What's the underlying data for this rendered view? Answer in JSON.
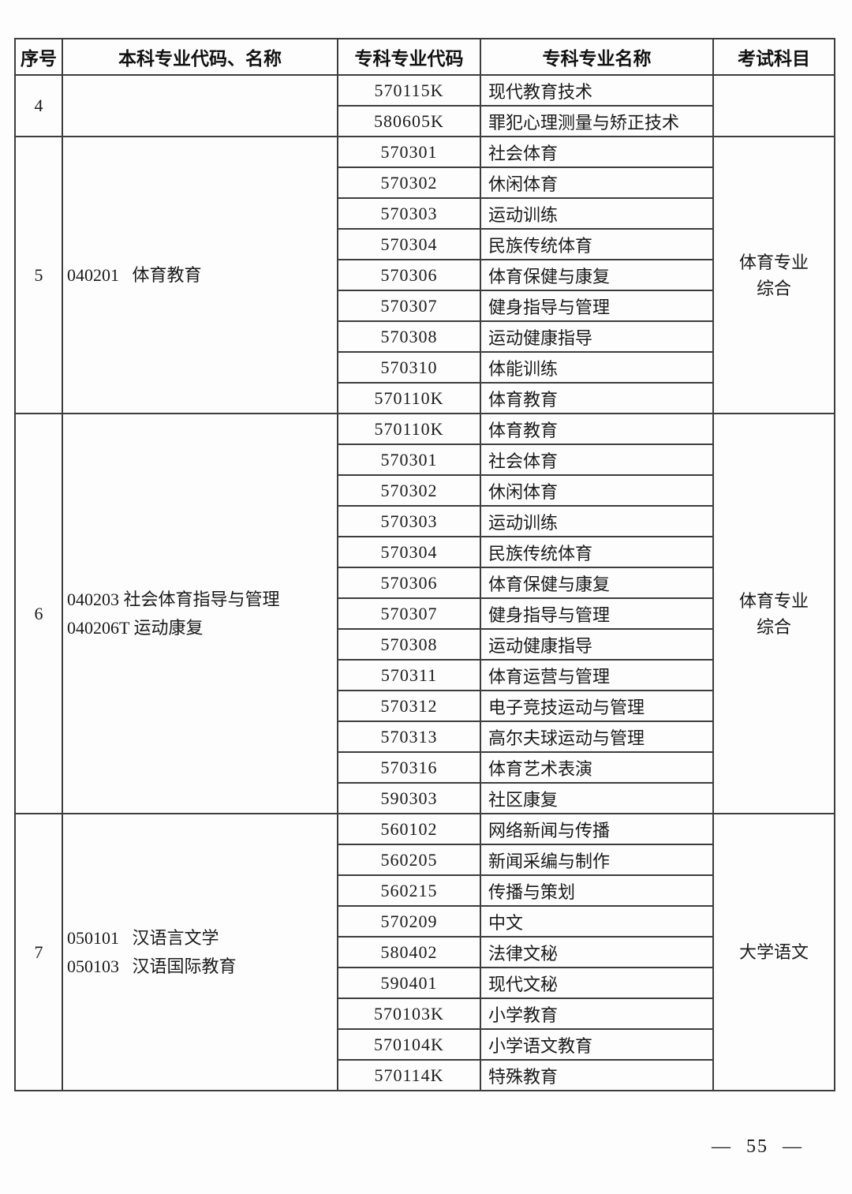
{
  "page": {
    "page_number": "— 55 —"
  },
  "table": {
    "headers": [
      "序号",
      "本科专业代码、名称",
      "专科专业代码",
      "专科专业名称",
      "考试科目"
    ],
    "sections": [
      {
        "seq": "4",
        "undergrad_lines": [],
        "exam": "",
        "rows": [
          {
            "code": "570115K",
            "name": "现代教育技术"
          },
          {
            "code": "580605K",
            "name": "罪犯心理测量与矫正技术"
          }
        ]
      },
      {
        "seq": "5",
        "undergrad_lines": [
          "040201   体育教育"
        ],
        "exam": "体育专业综合",
        "rows": [
          {
            "code": "570301",
            "name": "社会体育"
          },
          {
            "code": "570302",
            "name": "休闲体育"
          },
          {
            "code": "570303",
            "name": "运动训练"
          },
          {
            "code": "570304",
            "name": "民族传统体育"
          },
          {
            "code": "570306",
            "name": "体育保健与康复"
          },
          {
            "code": "570307",
            "name": "健身指导与管理"
          },
          {
            "code": "570308",
            "name": "运动健康指导"
          },
          {
            "code": "570310",
            "name": "体能训练"
          },
          {
            "code": "570110K",
            "name": "体育教育"
          }
        ]
      },
      {
        "seq": "6",
        "undergrad_lines": [
          "040203 社会体育指导与管理",
          "040206T 运动康复"
        ],
        "exam": "体育专业综合",
        "rows": [
          {
            "code": "570110K",
            "name": "体育教育"
          },
          {
            "code": "570301",
            "name": "社会体育"
          },
          {
            "code": "570302",
            "name": "休闲体育"
          },
          {
            "code": "570303",
            "name": "运动训练"
          },
          {
            "code": "570304",
            "name": "民族传统体育"
          },
          {
            "code": "570306",
            "name": "体育保健与康复"
          },
          {
            "code": "570307",
            "name": "健身指导与管理"
          },
          {
            "code": "570308",
            "name": "运动健康指导"
          },
          {
            "code": "570311",
            "name": "体育运营与管理"
          },
          {
            "code": "570312",
            "name": "电子竞技运动与管理"
          },
          {
            "code": "570313",
            "name": "高尔夫球运动与管理"
          },
          {
            "code": "570316",
            "name": "体育艺术表演"
          },
          {
            "code": "590303",
            "name": "社区康复"
          }
        ]
      },
      {
        "seq": "7",
        "undergrad_lines": [
          "050101   汉语言文学",
          "050103   汉语国际教育"
        ],
        "exam": "大学语文",
        "rows": [
          {
            "code": "560102",
            "name": "网络新闻与传播"
          },
          {
            "code": "560205",
            "name": "新闻采编与制作"
          },
          {
            "code": "560215",
            "name": "传播与策划"
          },
          {
            "code": "570209",
            "name": "中文"
          },
          {
            "code": "580402",
            "name": "法律文秘"
          },
          {
            "code": "590401",
            "name": "现代文秘"
          },
          {
            "code": "570103K",
            "name": "小学教育"
          },
          {
            "code": "570104K",
            "name": "小学语文教育"
          },
          {
            "code": "570114K",
            "name": "特殊教育"
          }
        ]
      }
    ]
  }
}
